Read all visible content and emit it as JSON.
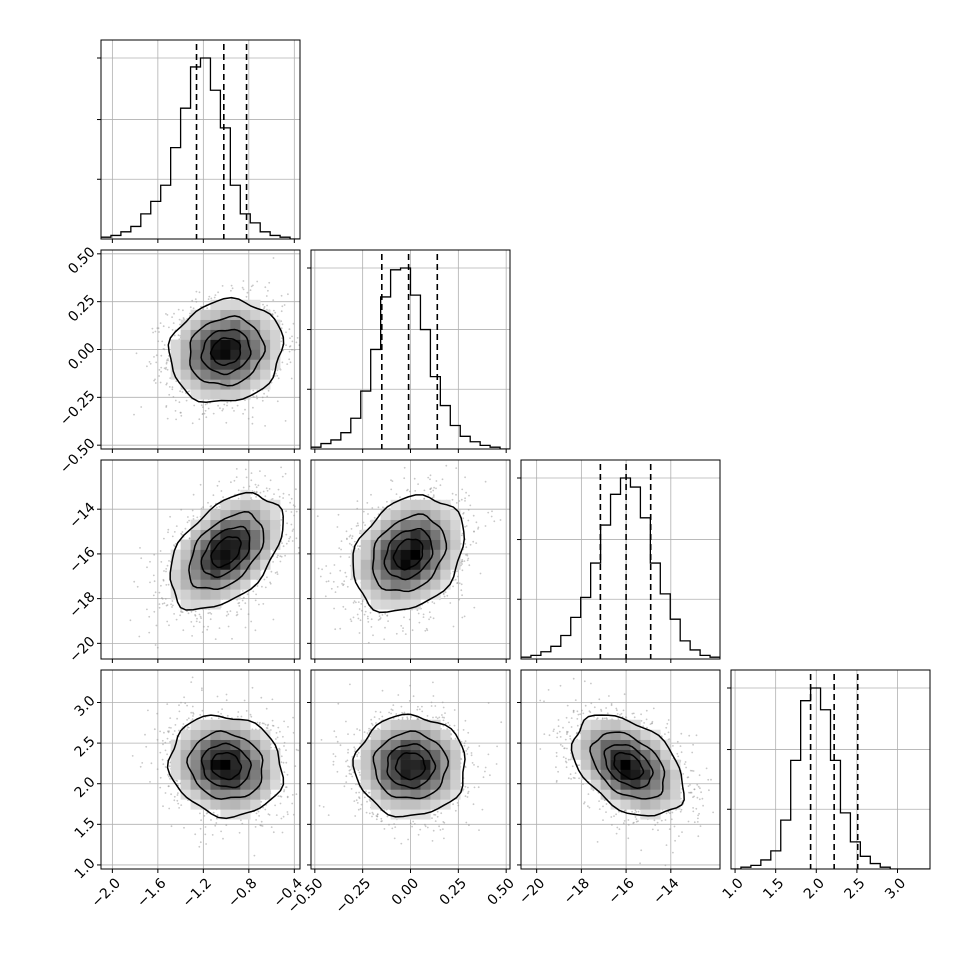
{
  "chart_data": {
    "type": "corner",
    "title": "",
    "parameters": [
      {
        "range": [
          -2.1,
          -0.35
        ],
        "ticks": [
          -2.0,
          -1.6,
          -1.2,
          -0.8,
          -0.4
        ],
        "tick_labels": [
          "−2.0",
          "−1.6",
          "−1.2",
          "−0.8",
          "−0.4"
        ],
        "quantiles": [
          -1.26,
          -1.02,
          -0.82
        ],
        "hist_counts": [
          1,
          2,
          4,
          7,
          14,
          21,
          30,
          51,
          73,
          96,
          101,
          83,
          62,
          30,
          14,
          9,
          4,
          2,
          1,
          0
        ]
      },
      {
        "range": [
          -0.52,
          0.52
        ],
        "ticks": [
          -0.5,
          -0.25,
          0.0,
          0.25,
          0.5
        ],
        "tick_labels": [
          "−0.50",
          "−0.25",
          "0.00",
          "0.25",
          "0.50"
        ],
        "quantiles": [
          -0.15,
          -0.01,
          0.14
        ],
        "hist_counts": [
          1,
          3,
          5,
          9,
          17,
          32,
          55,
          84,
          99,
          100,
          85,
          66,
          40,
          24,
          13,
          7,
          4,
          2,
          1,
          0
        ]
      },
      {
        "range": [
          -20.7,
          -11.8
        ],
        "ticks": [
          -20,
          -18,
          -16,
          -14
        ],
        "tick_labels": [
          "−20",
          "−18",
          "−16",
          "−14"
        ],
        "quantiles": [
          -17.15,
          -16.0,
          -14.9
        ],
        "hist_counts": [
          1,
          2,
          4,
          7,
          13,
          23,
          34,
          53,
          74,
          91,
          100,
          95,
          78,
          53,
          36,
          22,
          10,
          5,
          2,
          1
        ]
      },
      {
        "range": [
          0.95,
          3.4
        ],
        "ticks": [
          1.0,
          1.5,
          2.0,
          2.5,
          3.0
        ],
        "tick_labels": [
          "1.0",
          "1.5",
          "2.0",
          "2.5",
          "3.0"
        ],
        "quantiles": [
          1.93,
          2.22,
          2.51
        ],
        "hist_counts": [
          0,
          1,
          2,
          5,
          10,
          27,
          60,
          93,
          100,
          88,
          60,
          31,
          15,
          7,
          3,
          1,
          0,
          0,
          0,
          0
        ]
      }
    ],
    "pairs": [
      {
        "x_param": 0,
        "y_param": 1,
        "x_center": -1.0,
        "y_center": -0.01,
        "x_spread": 0.24,
        "y_spread": 0.13,
        "correlation": 0.1
      },
      {
        "x_param": 0,
        "y_param": 2,
        "x_center": -1.0,
        "y_center": -15.9,
        "x_spread": 0.24,
        "y_spread": 1.25,
        "correlation": 0.45
      },
      {
        "x_param": 1,
        "y_param": 2,
        "x_center": -0.01,
        "y_center": -16.0,
        "x_spread": 0.14,
        "y_spread": 1.25,
        "correlation": 0.25
      },
      {
        "x_param": 0,
        "y_param": 3,
        "x_center": -1.0,
        "y_center": 2.22,
        "x_spread": 0.24,
        "y_spread": 0.3,
        "correlation": -0.1
      },
      {
        "x_param": 1,
        "y_param": 3,
        "x_center": 0.0,
        "y_center": 2.22,
        "x_spread": 0.14,
        "y_spread": 0.3,
        "correlation": 0.0
      },
      {
        "x_param": 2,
        "y_param": 3,
        "x_center": -15.9,
        "y_center": 2.22,
        "x_spread": 1.2,
        "y_spread": 0.3,
        "correlation": -0.4
      }
    ],
    "contour_levels_sigma": [
      0.5,
      1.0,
      1.5,
      2.0
    ],
    "grid": true,
    "legend": "none",
    "colors": {
      "line": "#000000",
      "samples": "#9a9a9a",
      "grid": "#b0b0b0",
      "density_max": "#000000",
      "density_min": "#ffffff"
    }
  }
}
